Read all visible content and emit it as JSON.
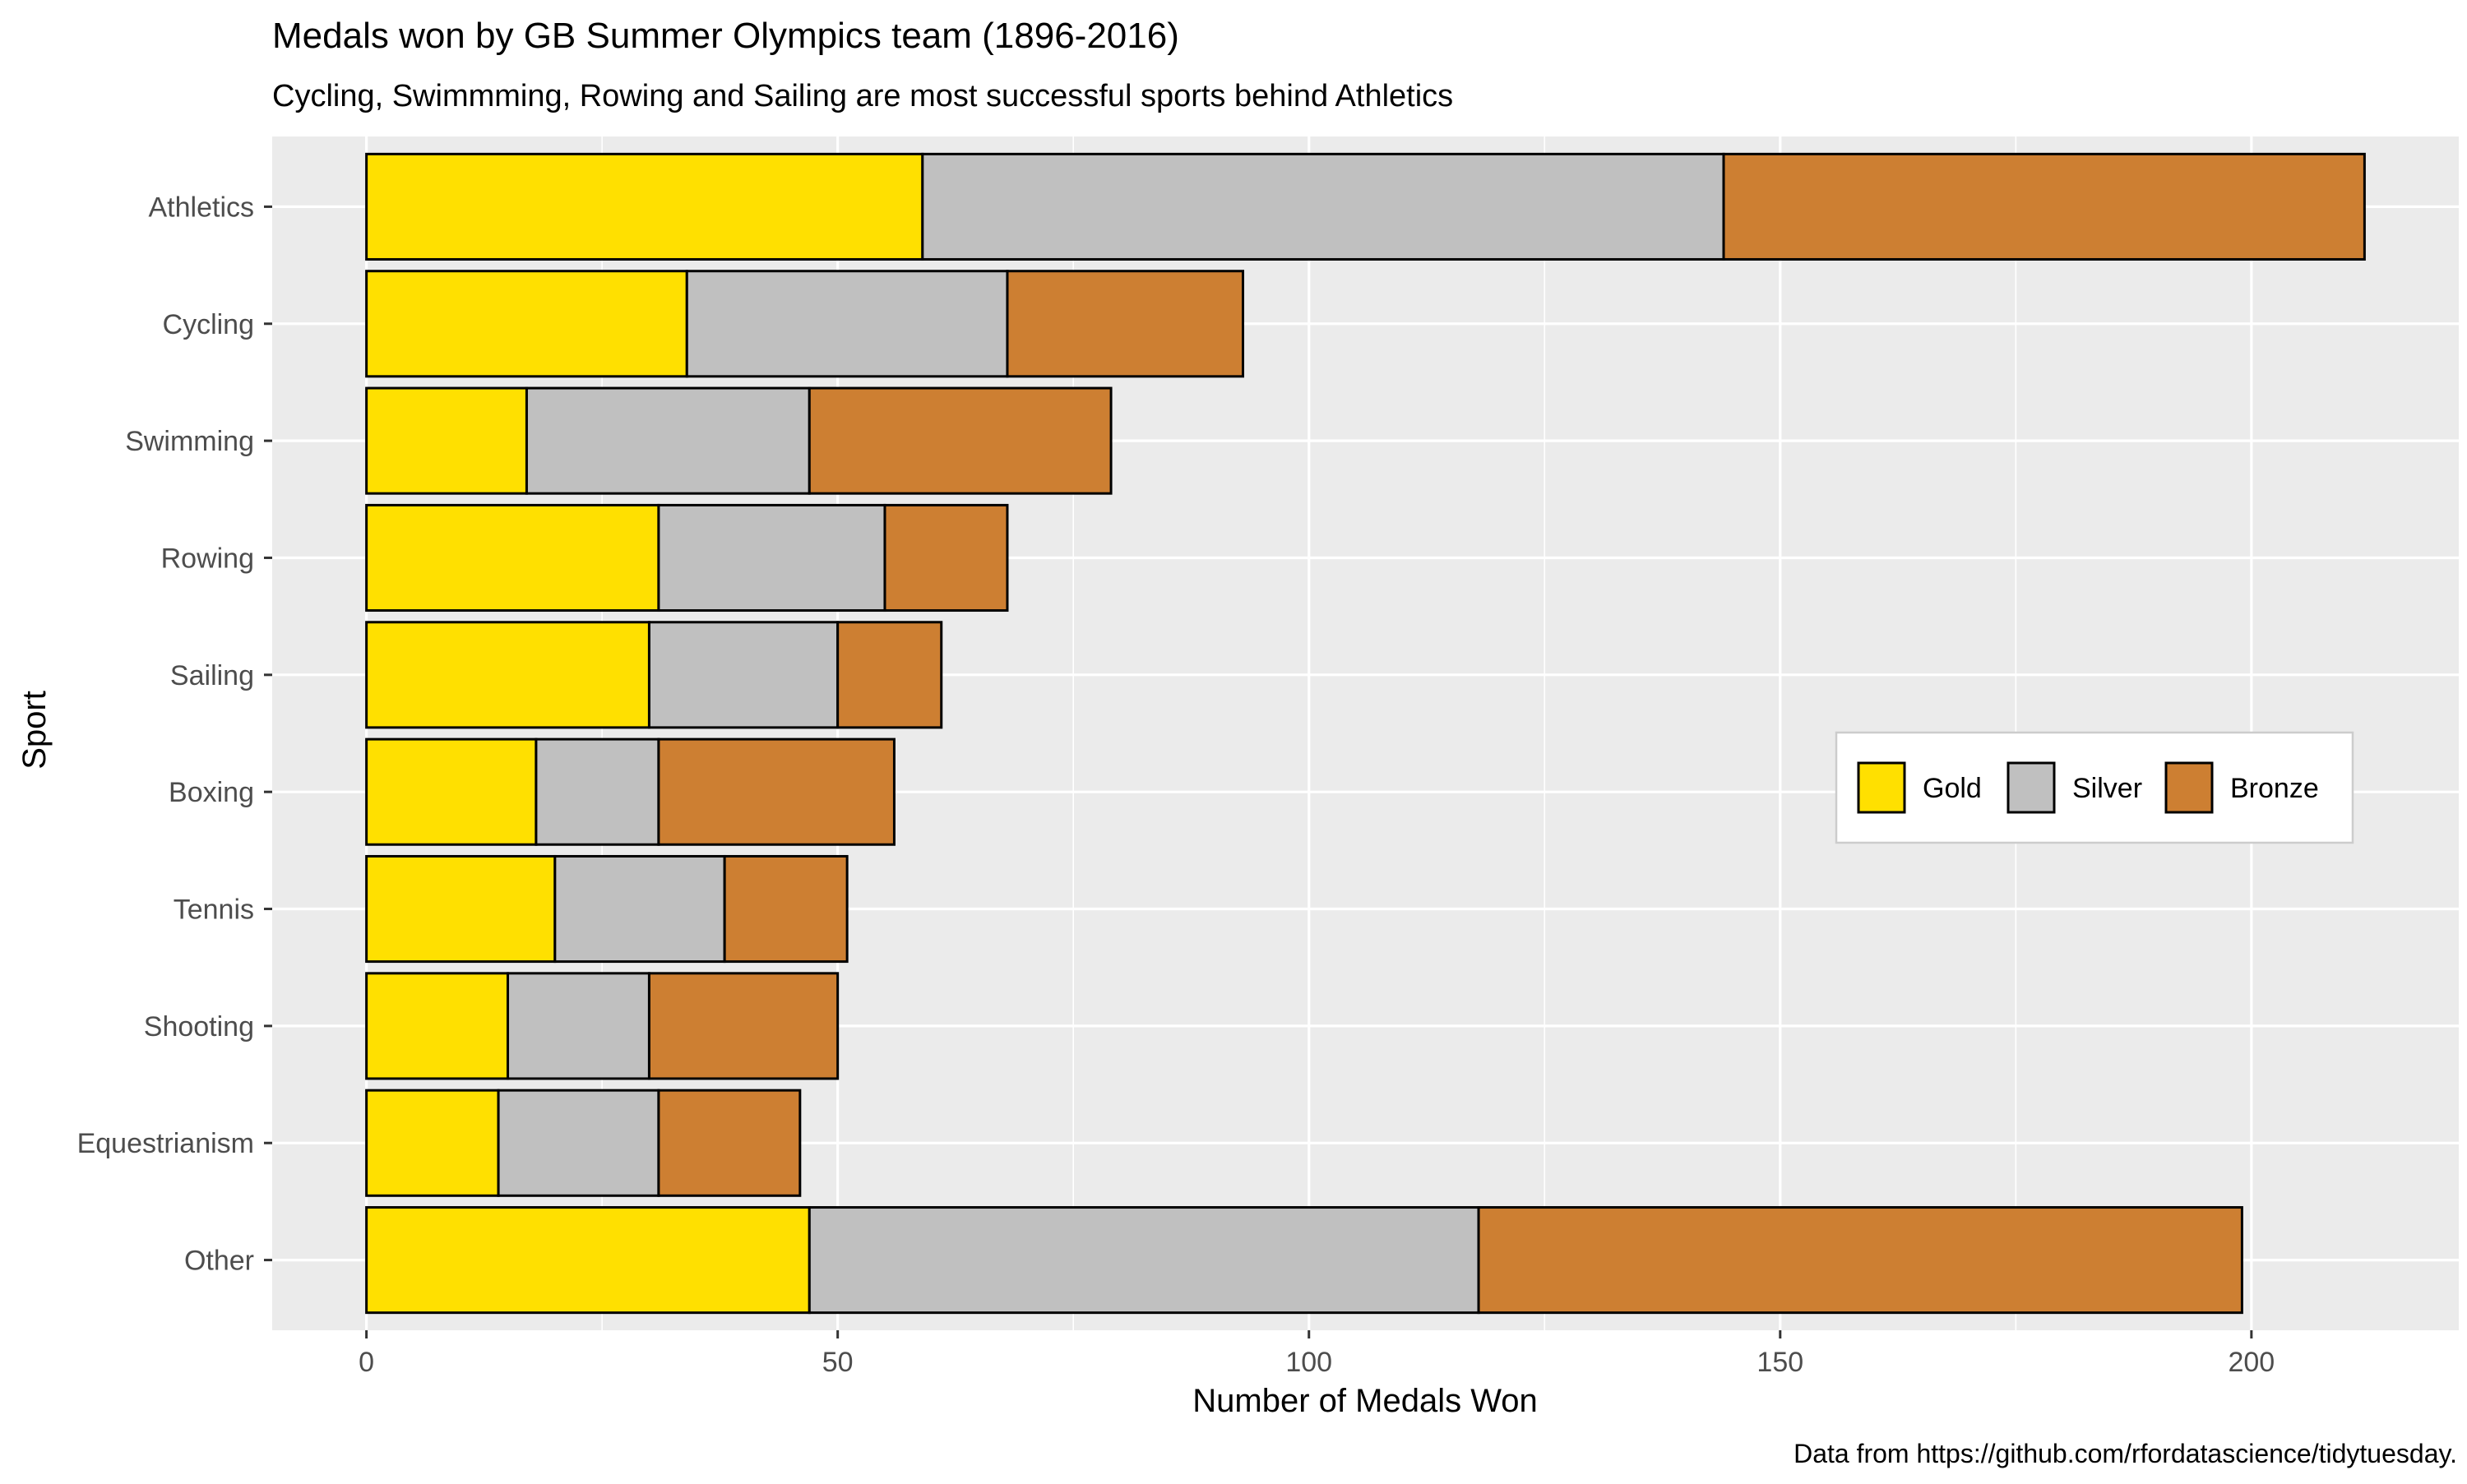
{
  "chart_data": {
    "type": "bar",
    "orientation": "horizontal",
    "stacked": true,
    "title": "Medals won by GB Summer Olympics team (1896-2016)",
    "subtitle": "Cycling, Swimmming, Rowing and Sailing are most successful sports behind Athletics",
    "caption": "Data from https://github.com/rfordatascience/tidytuesday.",
    "xlabel": "Number of Medals Won",
    "ylabel": "Sport",
    "xlim": [
      -10,
      222
    ],
    "xticks": [
      0,
      50,
      100,
      150,
      200
    ],
    "grid": true,
    "legend_position": "right-center",
    "categories": [
      "Athletics",
      "Cycling",
      "Swimming",
      "Rowing",
      "Sailing",
      "Boxing",
      "Tennis",
      "Shooting",
      "Equestrianism",
      "Other"
    ],
    "series": [
      {
        "name": "Gold",
        "color": "#FFE000",
        "values": [
          59,
          34,
          17,
          31,
          30,
          18,
          20,
          15,
          14,
          47
        ]
      },
      {
        "name": "Silver",
        "color": "#C0C0C0",
        "values": [
          85,
          34,
          30,
          24,
          20,
          13,
          18,
          15,
          17,
          71
        ]
      },
      {
        "name": "Bronze",
        "color": "#CD7F32",
        "values": [
          68,
          25,
          32,
          13,
          11,
          25,
          13,
          20,
          15,
          81
        ]
      }
    ]
  },
  "colors": {
    "panel_background": "#EBEBEB",
    "gridline": "#FFFFFF",
    "bar_outline": "#000000",
    "text": "#000000",
    "tick_label": "#4D4D4D"
  }
}
